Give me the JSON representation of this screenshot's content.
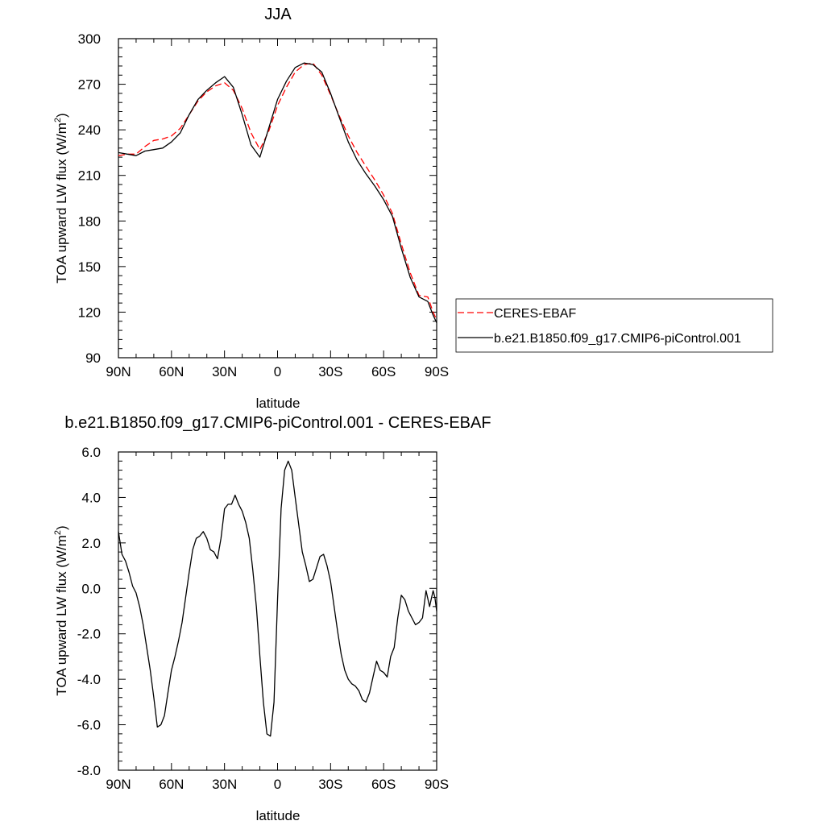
{
  "chart_data": [
    {
      "type": "line",
      "title": "JJA",
      "xlabel": "latitude",
      "ylabel": "TOA upward LW flux (W/m²)",
      "ylabel_main": "TOA upward LW flux (W/m",
      "ylabel_sup": "2",
      "ylabel_end": ")",
      "xlim": [
        90,
        -90
      ],
      "ylim": [
        90,
        300
      ],
      "x_ticks": [
        90,
        60,
        30,
        0,
        -30,
        -60,
        -90
      ],
      "x_tick_labels": [
        "90N",
        "60N",
        "30N",
        "0",
        "30S",
        "60S",
        "90S"
      ],
      "y_ticks": [
        90,
        120,
        150,
        180,
        210,
        240,
        270,
        300
      ],
      "y_tick_labels": [
        "90",
        "120",
        "150",
        "180",
        "210",
        "240",
        "270",
        "300"
      ],
      "legend_position": "right",
      "series": [
        {
          "name": "CERES-EBAF",
          "color": "#ff0000",
          "dash": "dashed",
          "x": [
            90,
            85,
            80,
            75,
            70,
            65,
            60,
            55,
            50,
            45,
            40,
            35,
            30,
            25,
            20,
            15,
            10,
            5,
            0,
            -5,
            -10,
            -15,
            -20,
            -25,
            -30,
            -35,
            -40,
            -45,
            -50,
            -55,
            -60,
            -65,
            -70,
            -75,
            -80,
            -85,
            -88,
            -90
          ],
          "y": [
            223,
            224,
            224,
            229,
            233,
            234,
            236,
            241,
            250,
            259,
            265,
            269,
            271,
            266,
            254,
            238,
            227,
            239,
            256,
            268,
            278,
            283,
            284,
            276,
            263,
            249,
            236,
            225,
            216,
            207,
            197,
            185,
            165,
            146,
            131,
            130,
            120,
            115
          ]
        },
        {
          "name": "b.e21.B1850.f09_g17.CMIP6-piControl.001",
          "color": "#000000",
          "dash": "solid",
          "x": [
            90,
            85,
            80,
            75,
            70,
            65,
            60,
            55,
            50,
            45,
            40,
            35,
            30,
            25,
            20,
            15,
            10,
            5,
            0,
            -5,
            -10,
            -15,
            -20,
            -25,
            -30,
            -35,
            -40,
            -45,
            -50,
            -55,
            -60,
            -65,
            -70,
            -75,
            -80,
            -85,
            -88,
            -90
          ],
          "y": [
            225,
            224,
            223,
            226,
            227,
            228,
            232,
            238,
            250,
            260,
            266,
            271,
            275,
            268,
            250,
            230,
            222,
            241,
            260,
            272,
            281,
            284,
            283,
            278,
            264,
            248,
            232,
            220,
            211,
            203,
            194,
            183,
            162,
            143,
            130,
            127,
            118,
            113
          ]
        }
      ]
    },
    {
      "type": "line",
      "title": "b.e21.B1850.f09_g17.CMIP6-piControl.001 - CERES-EBAF",
      "xlabel": "latitude",
      "ylabel": "TOA upward LW flux (W/m²)",
      "ylabel_main": "TOA upward LW flux (W/m",
      "ylabel_sup": "2",
      "ylabel_end": ")",
      "xlim": [
        90,
        -90
      ],
      "ylim": [
        -8,
        6
      ],
      "x_ticks": [
        90,
        60,
        30,
        0,
        -30,
        -60,
        -90
      ],
      "x_tick_labels": [
        "90N",
        "60N",
        "30N",
        "0",
        "30S",
        "60S",
        "90S"
      ],
      "y_ticks": [
        -8,
        -6,
        -4,
        -2,
        0,
        2,
        4,
        6
      ],
      "y_tick_labels": [
        "-8.0",
        "-6.0",
        "-4.0",
        "-2.0",
        "0.0",
        "2.0",
        "4.0",
        "6.0"
      ],
      "series": [
        {
          "name": "b.e21.B1850.f09_g17.CMIP6-piControl.001 - CERES-EBAF",
          "color": "#000000",
          "dash": "solid",
          "x": [
            90,
            88,
            86,
            84,
            82,
            80,
            78,
            76,
            74,
            72,
            70,
            68,
            66,
            64,
            62,
            60,
            58,
            56,
            54,
            52,
            50,
            48,
            46,
            44,
            42,
            40,
            38,
            36,
            34,
            32,
            30,
            28,
            26,
            24,
            22,
            20,
            18,
            16,
            14,
            12,
            10,
            8,
            6,
            4,
            2,
            0,
            -2,
            -4,
            -6,
            -8,
            -10,
            -12,
            -14,
            -16,
            -18,
            -20,
            -22,
            -24,
            -26,
            -28,
            -30,
            -32,
            -34,
            -36,
            -38,
            -40,
            -42,
            -44,
            -46,
            -48,
            -50,
            -52,
            -54,
            -56,
            -58,
            -60,
            -62,
            -64,
            -66,
            -68,
            -70,
            -72,
            -74,
            -76,
            -78,
            -80,
            -82,
            -84,
            -86,
            -88,
            -89,
            -90
          ],
          "y": [
            2.5,
            1.5,
            1.2,
            0.7,
            0.1,
            -0.2,
            -0.8,
            -1.6,
            -2.6,
            -3.6,
            -4.8,
            -6.1,
            -6.0,
            -5.6,
            -4.6,
            -3.6,
            -3.0,
            -2.3,
            -1.5,
            -0.4,
            0.7,
            1.7,
            2.2,
            2.3,
            2.5,
            2.2,
            1.7,
            1.6,
            1.3,
            2.2,
            3.5,
            3.7,
            3.7,
            4.1,
            3.7,
            3.4,
            2.9,
            2.2,
            0.8,
            -0.8,
            -3.0,
            -5.0,
            -6.4,
            -6.5,
            -5.0,
            -0.5,
            3.5,
            5.2,
            5.6,
            5.2,
            4.0,
            2.8,
            1.6,
            1.0,
            0.3,
            0.4,
            0.9,
            1.4,
            1.5,
            1.0,
            0.3,
            -0.8,
            -1.9,
            -2.9,
            -3.6,
            -4.0,
            -4.2,
            -4.3,
            -4.5,
            -4.9,
            -5.0,
            -4.6,
            -3.9,
            -3.2,
            -3.6,
            -3.7,
            -3.9,
            -3.0,
            -2.6,
            -1.3,
            -0.3,
            -0.5,
            -1.0,
            -1.3,
            -1.6,
            -1.5,
            -1.3,
            -0.1,
            -0.8,
            -0.1,
            -0.4,
            -1.0
          ]
        }
      ]
    }
  ]
}
